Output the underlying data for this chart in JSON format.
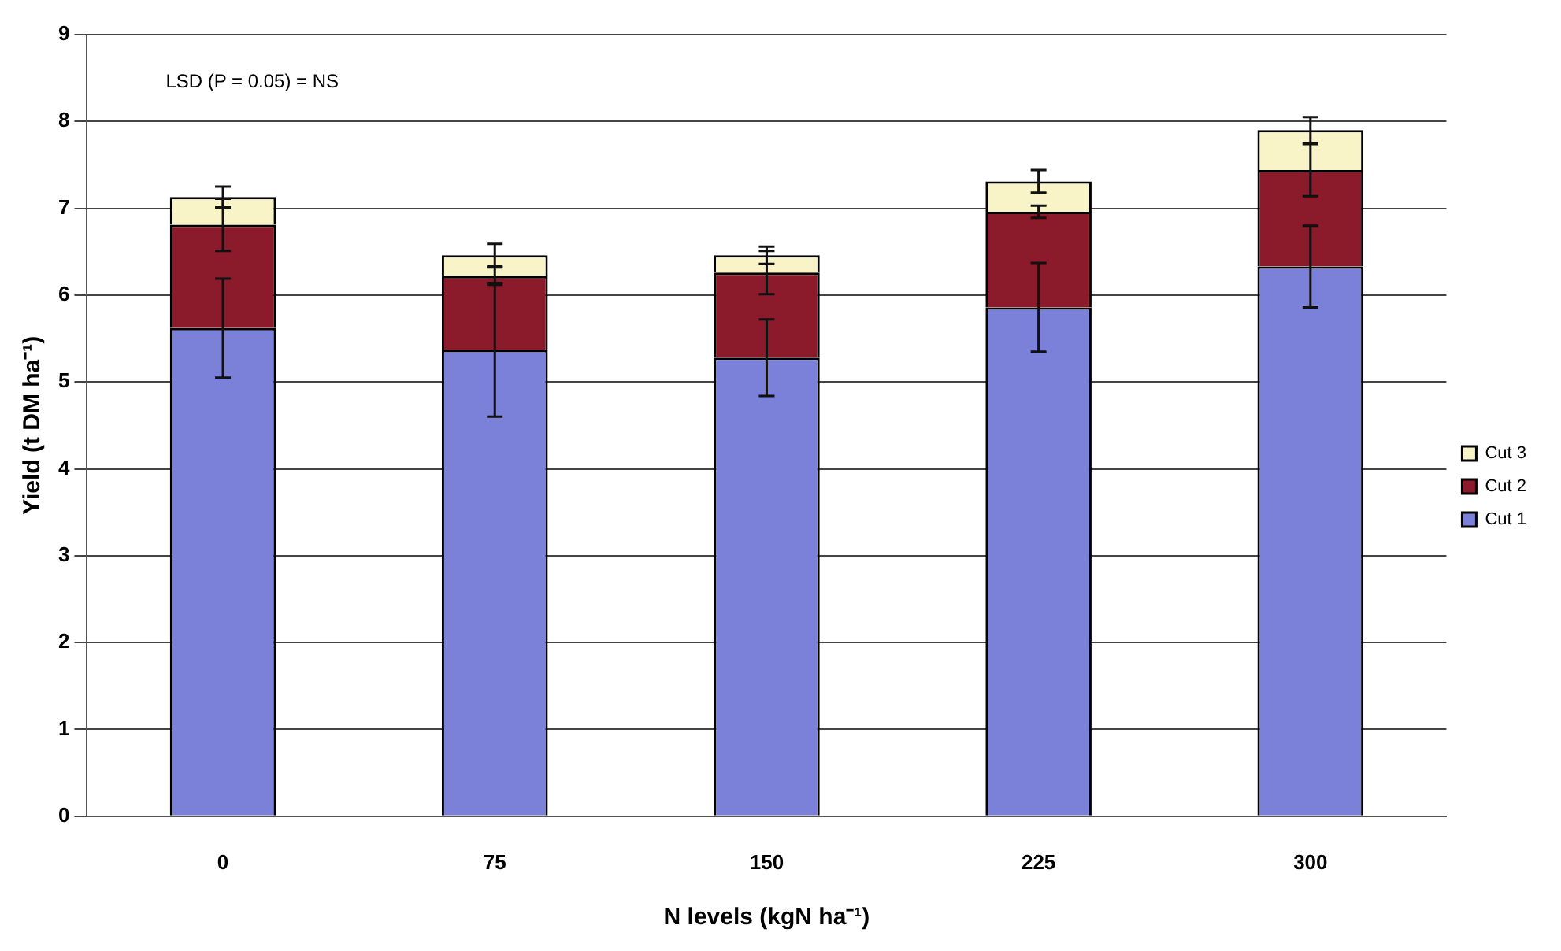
{
  "chart_data": {
    "type": "bar",
    "stacked": true,
    "categories": [
      "0",
      "75",
      "150",
      "225",
      "300"
    ],
    "xlabel": "N levels (kgN ha⁻¹)",
    "ylabel": "Yield (t DM ha⁻¹)",
    "ylim": [
      0,
      9
    ],
    "yticks": [
      0,
      1,
      2,
      3,
      4,
      5,
      6,
      7,
      8,
      9
    ],
    "grid": "y",
    "legend": "right",
    "annotations": [
      "LSD (P = 0.05) = NS"
    ],
    "series": [
      {
        "name": "Cut 1",
        "color": "#7b80d8",
        "values": [
          5.62,
          5.37,
          5.28,
          5.86,
          6.33
        ],
        "errors": [
          0.57,
          0.77,
          0.44,
          0.51,
          0.47
        ]
      },
      {
        "name": "Cut 2",
        "color": "#8b1a2a",
        "values": [
          1.19,
          0.85,
          0.98,
          1.1,
          1.11
        ],
        "errors": [
          0.3,
          0.1,
          0.25,
          0.07,
          0.3
        ]
      },
      {
        "name": "Cut 3",
        "color": "#f8f4c8",
        "values": [
          0.32,
          0.24,
          0.2,
          0.35,
          0.46
        ],
        "errors": [
          0.12,
          0.13,
          0.1,
          0.13,
          0.15
        ]
      }
    ]
  }
}
